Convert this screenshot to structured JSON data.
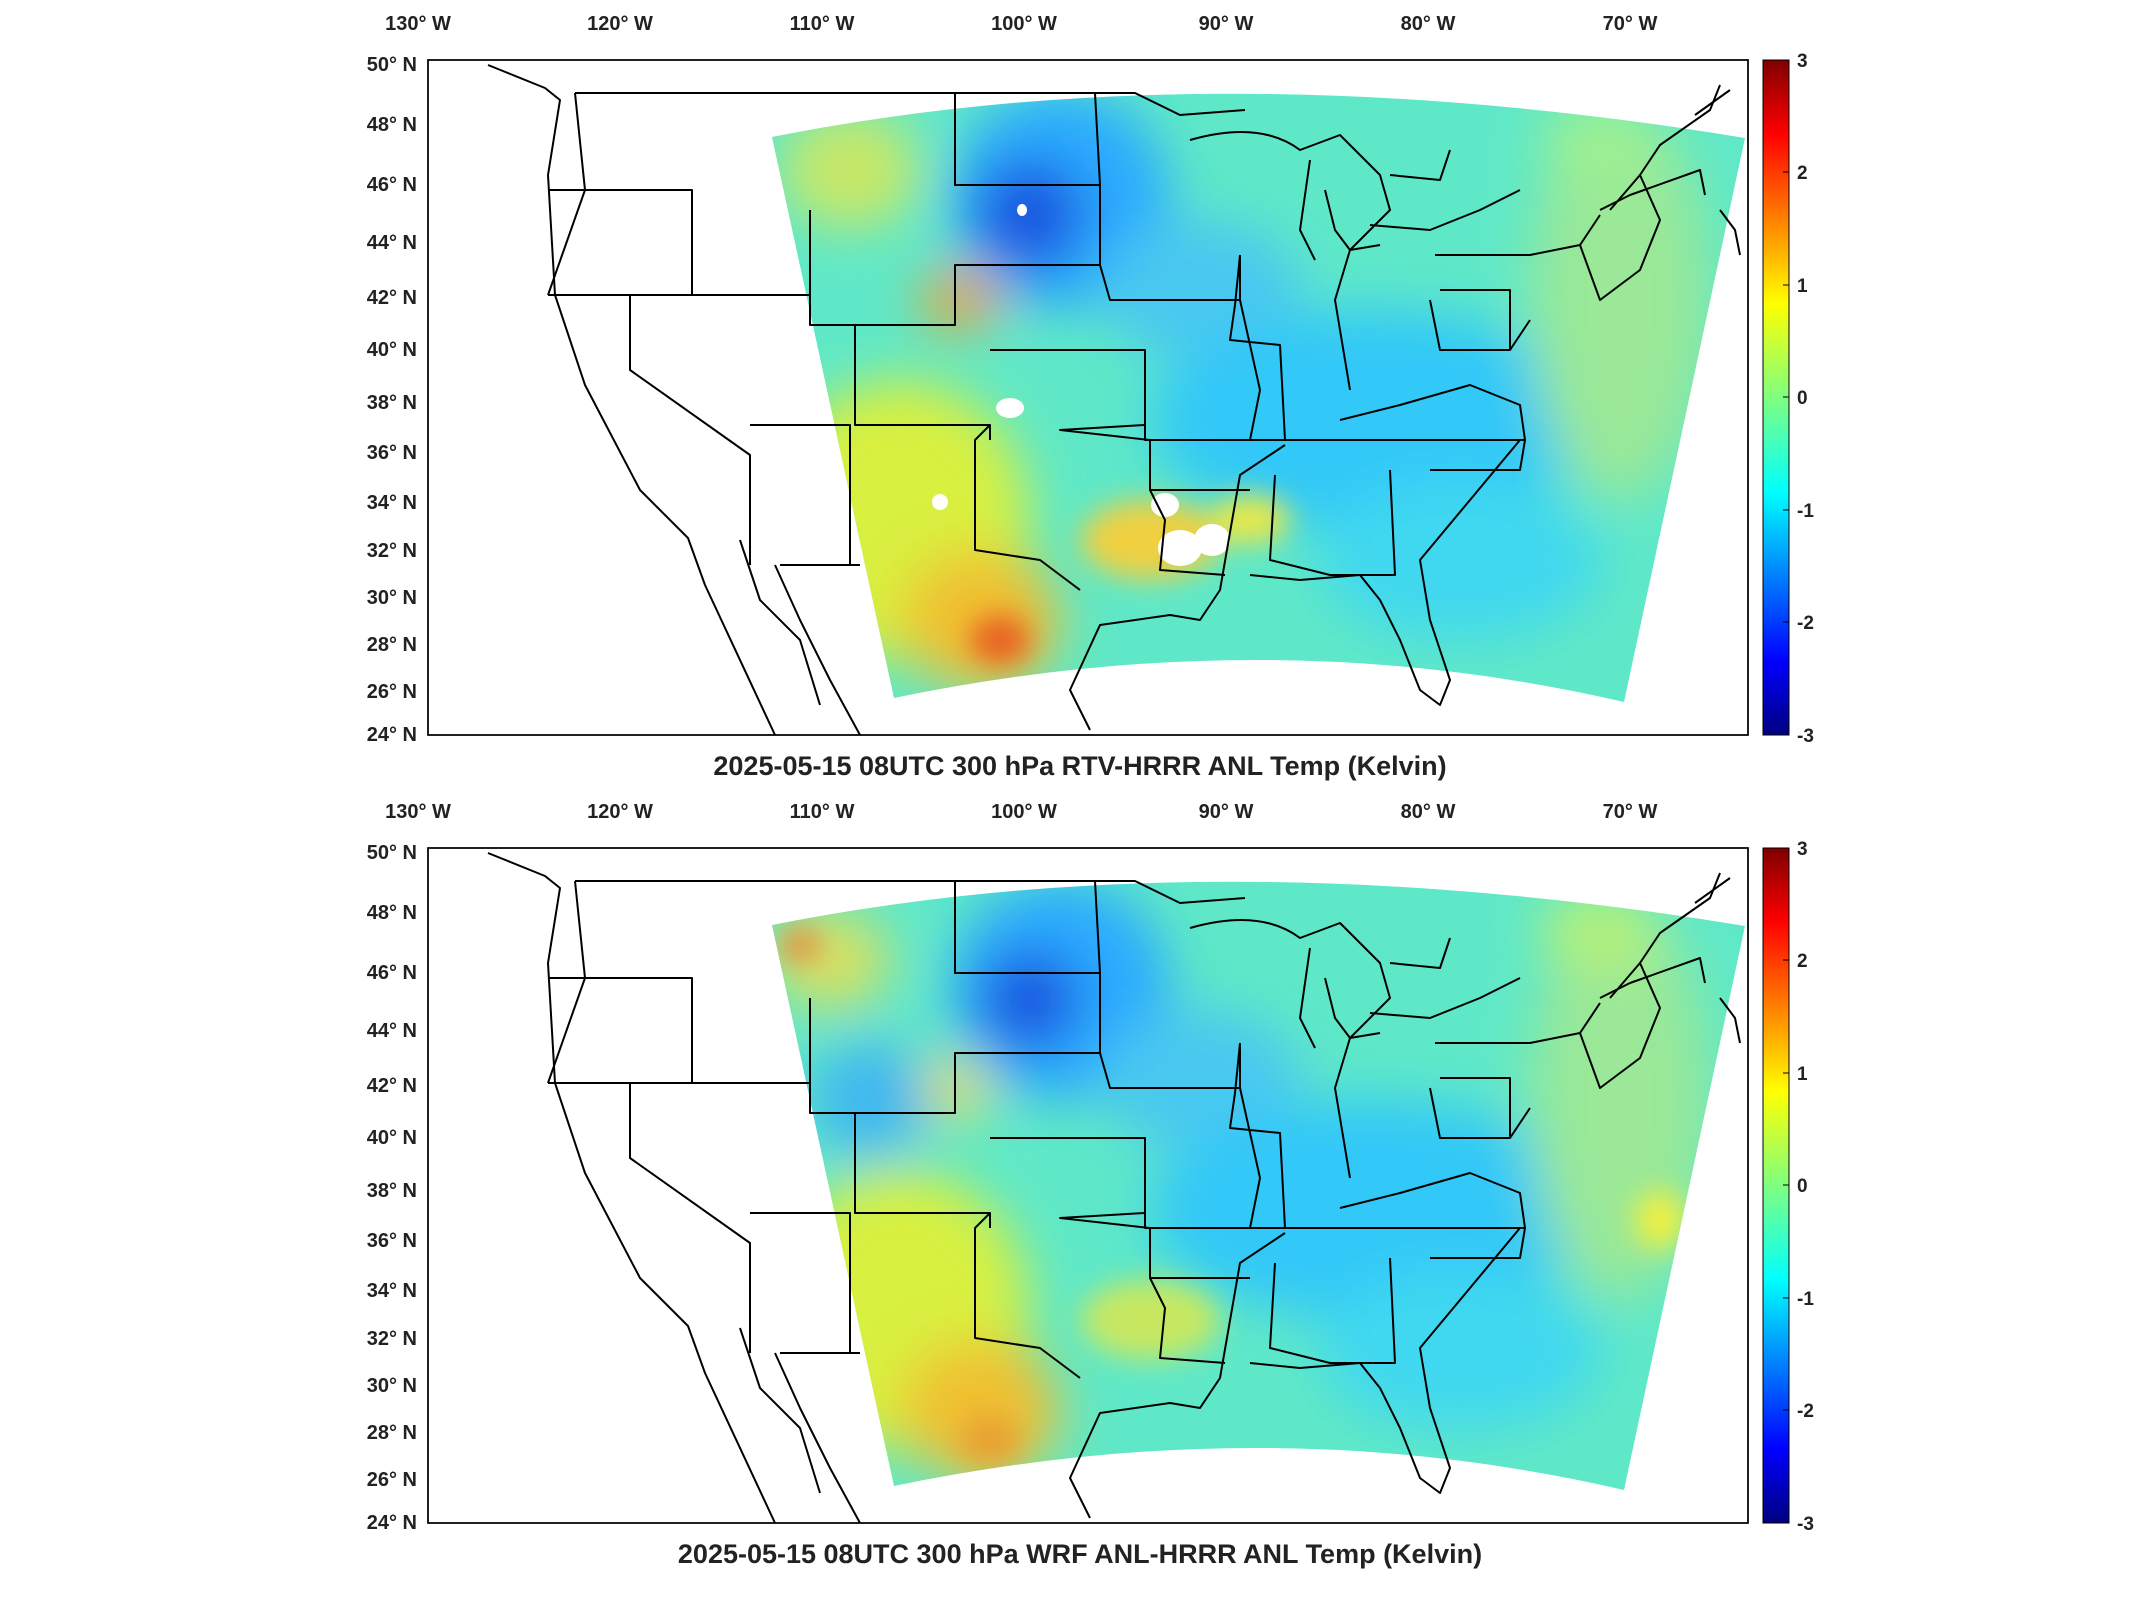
{
  "figure": {
    "panels": [
      {
        "id": "top",
        "title": "2025-05-15 08UTC 300 hPa RTV-HRRR ANL Temp (Kelvin)"
      },
      {
        "id": "bottom",
        "title": "2025-05-15 08UTC 300 hPa WRF ANL-HRRR ANL Temp (Kelvin)"
      }
    ],
    "lon_ticks": [
      "130",
      "120",
      "110",
      "100",
      "90",
      "80",
      "70"
    ],
    "lon_hemisphere": "W",
    "lat_ticks": [
      "50",
      "48",
      "46",
      "44",
      "42",
      "40",
      "38",
      "36",
      "34",
      "32",
      "30",
      "28",
      "26",
      "24"
    ],
    "lat_hemisphere": "N",
    "colorbar": {
      "ticks": [
        "3",
        "2",
        "1",
        "0",
        "-1",
        "-2",
        "-3"
      ],
      "range": [
        -3,
        3
      ],
      "colormap": "jet"
    }
  },
  "chart_data": [
    {
      "type": "heatmap",
      "title": "2025-05-15 08UTC 300 hPa RTV-HRRR ANL Temp (Kelvin)",
      "lon_range": [
        -130,
        -65
      ],
      "lat_range": [
        24,
        50
      ],
      "value_range": [
        -3,
        3
      ]
    },
    {
      "type": "heatmap",
      "title": "2025-05-15 08UTC 300 hPa WRF ANL-HRRR ANL Temp (Kelvin)",
      "lon_range": [
        -130,
        -65
      ],
      "lat_range": [
        24,
        50
      ],
      "value_range": [
        -3,
        3
      ]
    }
  ]
}
